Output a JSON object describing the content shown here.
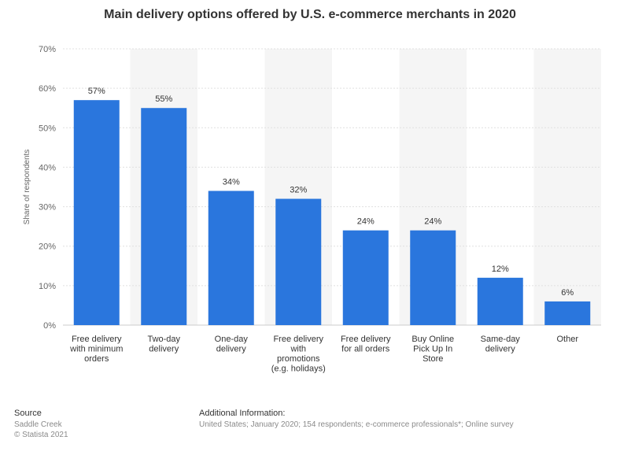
{
  "chart_data": {
    "type": "bar",
    "title": "Main delivery options offered by U.S. e-commerce merchants in 2020",
    "ylabel": "Share of respondents",
    "xlabel": "",
    "ylim": [
      0,
      70
    ],
    "yticks": [
      "0%",
      "10%",
      "20%",
      "30%",
      "40%",
      "50%",
      "60%",
      "70%"
    ],
    "ytick_values": [
      0,
      10,
      20,
      30,
      40,
      50,
      60,
      70
    ],
    "grid": true,
    "bar_color": "#2a76dd",
    "categories": [
      [
        "Free delivery",
        "with minimum",
        "orders"
      ],
      [
        "Two-day",
        "delivery"
      ],
      [
        "One-day",
        "delivery"
      ],
      [
        "Free delivery",
        "with",
        "promotions",
        "(e.g. holidays)"
      ],
      [
        "Free delivery",
        "for all orders"
      ],
      [
        "Buy Online",
        "Pick Up In",
        "Store"
      ],
      [
        "Same-day",
        "delivery"
      ],
      [
        "Other"
      ]
    ],
    "values": [
      57,
      55,
      34,
      32,
      24,
      24,
      12,
      6
    ],
    "data_labels": [
      "57%",
      "55%",
      "34%",
      "32%",
      "24%",
      "24%",
      "12%",
      "6%"
    ]
  },
  "footer": {
    "source_heading": "Source",
    "source_lines": [
      "Saddle Creek",
      "© Statista 2021"
    ],
    "info_heading": "Additional Information:",
    "info_lines": [
      "United States; January 2020; 154 respondents; e-commerce professionals*; Online survey"
    ]
  }
}
